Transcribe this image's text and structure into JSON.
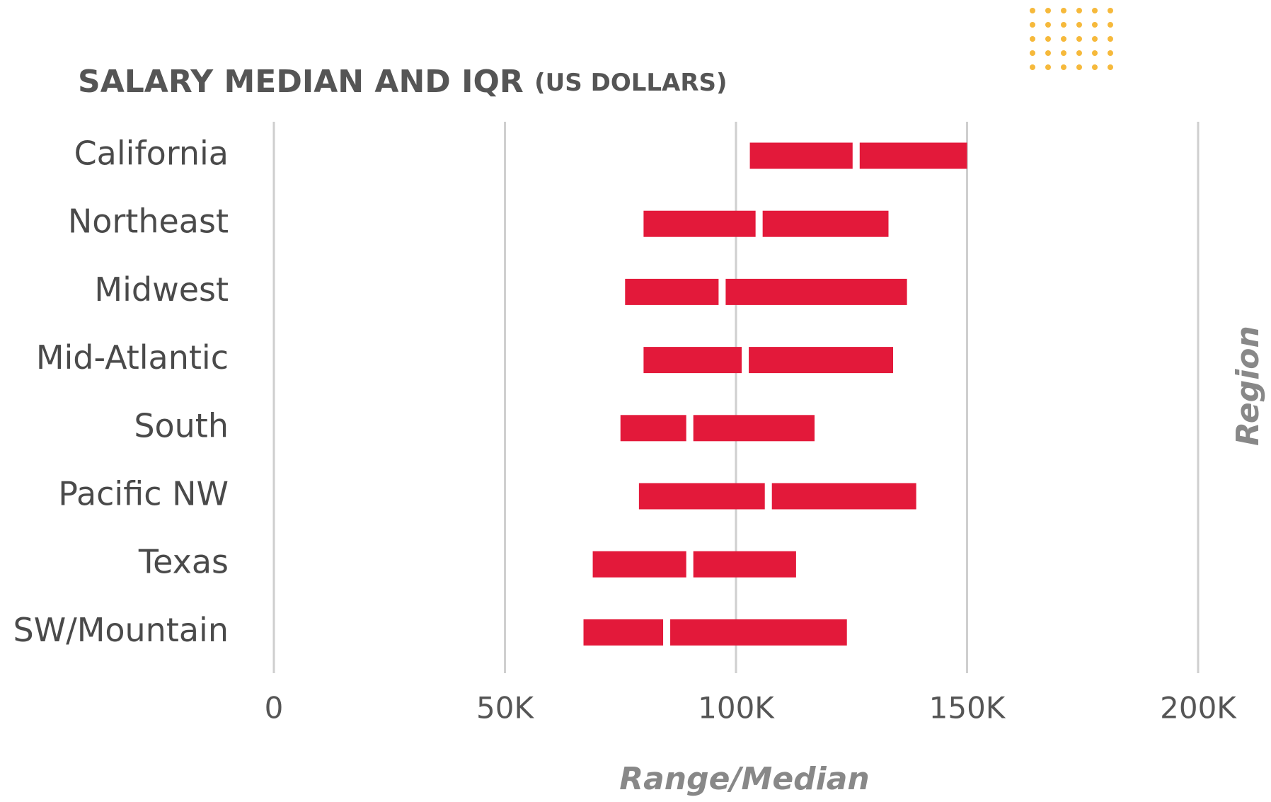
{
  "chart_data": {
    "type": "range-bar",
    "title": "SALARY MEDIAN AND IQR",
    "subtitle": "(US DOLLARS)",
    "x_label": "Range/Median",
    "y_label": "Region",
    "categories": [
      "California",
      "Northeast",
      "Midwest",
      "Mid-Atlantic",
      "South",
      "Pacific NW",
      "Texas",
      "SW/Mountain"
    ],
    "q1": [
      103000,
      80000,
      76000,
      80000,
      75000,
      79000,
      69000,
      67000
    ],
    "median": [
      126000,
      105000,
      97000,
      102000,
      90000,
      107000,
      90000,
      85000
    ],
    "q3": [
      150000,
      133000,
      137000,
      134000,
      117000,
      139000,
      113000,
      124000
    ],
    "color": "#e3193a",
    "xlim": [
      0,
      200000
    ],
    "xticks": [
      0,
      {
        "value": 50000,
        "label": "50K"
      },
      {
        "value": 100000,
        "label": "100K"
      },
      {
        "value": 150000,
        "label": "150K"
      },
      {
        "value": 200000,
        "label": "200K"
      }
    ],
    "grid": true
  }
}
